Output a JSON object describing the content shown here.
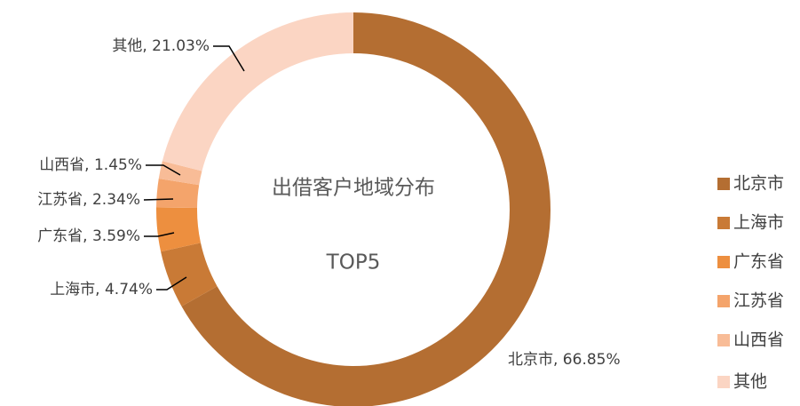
{
  "chart_data": {
    "type": "donut",
    "title": "出借客户地域分布",
    "subtitle": "TOP5",
    "categories": [
      "北京市",
      "上海市",
      "广东省",
      "江苏省",
      "山西省",
      "其他"
    ],
    "values": [
      66.85,
      4.74,
      3.59,
      2.34,
      1.45,
      21.03
    ],
    "value_labels": [
      "北京市, 66.85%",
      "上海市, 4.74%",
      "广东省, 3.59%",
      "江苏省, 2.34%",
      "山西省, 1.45%",
      "其他, 21.03%"
    ],
    "colors": [
      "#b46e32",
      "#c97a36",
      "#ed8f3f",
      "#f4a46b",
      "#f8bc97",
      "#fbd5c3"
    ],
    "legend": "right"
  }
}
